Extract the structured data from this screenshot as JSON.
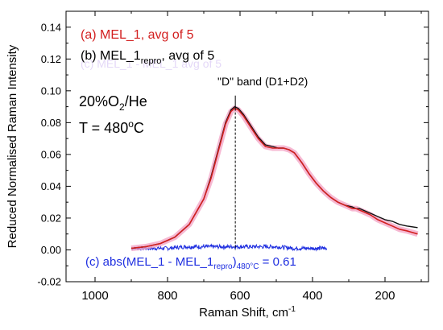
{
  "chart_data": {
    "type": "line",
    "xlabel": "Raman Shift, cm",
    "xlabel_sup": "-1",
    "ylabel": "Reduced Normalised Raman Intensity",
    "xlim": [
      1080,
      80
    ],
    "ylim": [
      -0.02,
      0.15
    ],
    "x_reversed": true,
    "x_ticks": [
      1000,
      800,
      600,
      400,
      200
    ],
    "y_ticks": [
      -0.02,
      0.0,
      0.02,
      0.04,
      0.06,
      0.08,
      0.1,
      0.12,
      0.14
    ],
    "y_tick_labels": [
      "-0.02",
      "0.00",
      "0.02",
      "0.04",
      "0.06",
      "0.08",
      "0.10",
      "0.12",
      "0.14"
    ],
    "grid": false,
    "series": [
      {
        "name": "(a) MEL_1, avg of 5",
        "color": "#d32020",
        "x": [
          900,
          860,
          820,
          780,
          740,
          700,
          680,
          660,
          640,
          625,
          615,
          605,
          590,
          570,
          550,
          530,
          510,
          495,
          480,
          465,
          450,
          430,
          410,
          390,
          370,
          350,
          330,
          310,
          290,
          280,
          270,
          260,
          240,
          220,
          200,
          180,
          160,
          140,
          110
        ],
        "y": [
          0.001,
          0.002,
          0.004,
          0.008,
          0.016,
          0.032,
          0.045,
          0.062,
          0.079,
          0.087,
          0.089,
          0.088,
          0.084,
          0.077,
          0.07,
          0.065,
          0.064,
          0.064,
          0.064,
          0.063,
          0.061,
          0.055,
          0.048,
          0.042,
          0.037,
          0.033,
          0.03,
          0.028,
          0.026,
          0.026,
          0.025,
          0.024,
          0.022,
          0.019,
          0.017,
          0.015,
          0.013,
          0.012,
          0.01
        ]
      },
      {
        "name": "(b) MEL_1",
        "name_sub": "repro",
        "name_suffix": ", avg of 5",
        "color": "#111111",
        "x": [
          900,
          860,
          820,
          780,
          740,
          700,
          680,
          660,
          640,
          625,
          615,
          605,
          590,
          570,
          550,
          530,
          510,
          495,
          480,
          465,
          450,
          430,
          410,
          390,
          370,
          350,
          330,
          310,
          290,
          280,
          270,
          260,
          240,
          220,
          200,
          180,
          160,
          140,
          110
        ],
        "y": [
          0.001,
          0.002,
          0.004,
          0.008,
          0.016,
          0.032,
          0.046,
          0.063,
          0.08,
          0.088,
          0.09,
          0.089,
          0.085,
          0.078,
          0.071,
          0.066,
          0.065,
          0.064,
          0.064,
          0.063,
          0.061,
          0.055,
          0.048,
          0.042,
          0.037,
          0.033,
          0.03,
          0.028,
          0.027,
          0.026,
          0.026,
          0.025,
          0.023,
          0.021,
          0.019,
          0.018,
          0.016,
          0.015,
          0.014
        ]
      },
      {
        "name": "(c) abs(MEL_1 - MEL_1",
        "name_sub": "repro",
        "name_close": ")",
        "name_sub2": "480°C",
        "name_suffix": " = 0.61",
        "color": "#1f2fe0",
        "x": [
          900,
          850,
          800,
          750,
          700,
          650,
          600,
          550,
          500,
          450,
          400,
          360
        ],
        "y": [
          0.001,
          0.001,
          0.001,
          0.002,
          0.002,
          0.002,
          0.002,
          0.002,
          0.002,
          0.001,
          0.001,
          0.001
        ]
      }
    ],
    "annotations": {
      "d_band_label": "\"D\" band (D1+D2)",
      "d_band_x": 613,
      "gas_pre": "20%O",
      "gas_sub": "2",
      "gas_post": "/He",
      "temp_pre": "T = 480",
      "temp_sup": "o",
      "temp_post": "C"
    },
    "ghost_text": "(c) MEL_1 - MEL_1 avg of 5"
  }
}
